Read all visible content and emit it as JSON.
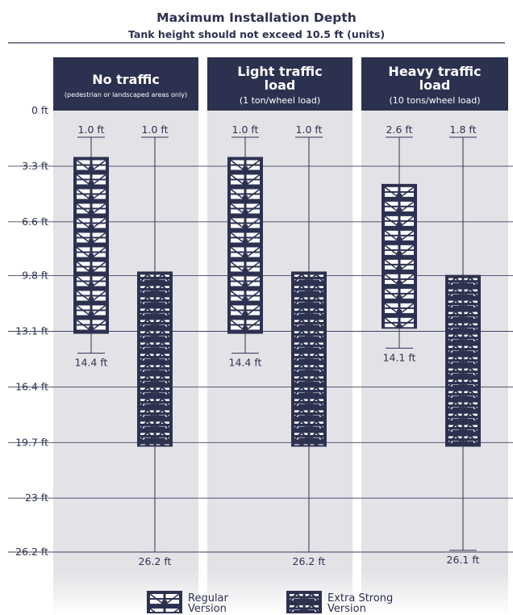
{
  "chart_data": {
    "type": "bar",
    "title": "Maximum Installation Depth",
    "subtitle": "Tank height should not exceed 10.5 ft (units)",
    "y_ticks": [
      {
        "value": 0,
        "label": "0 ft"
      },
      {
        "value": 3.3,
        "label": "3.3 ft"
      },
      {
        "value": 6.6,
        "label": "6.6 ft"
      },
      {
        "value": 9.8,
        "label": "9.8 ft"
      },
      {
        "value": 13.1,
        "label": "13.1 ft"
      },
      {
        "value": 16.4,
        "label": "16.4 ft"
      },
      {
        "value": 19.7,
        "label": "19.7 ft"
      },
      {
        "value": 23,
        "label": "23 ft"
      },
      {
        "value": 26.2,
        "label": "26.2 ft"
      }
    ],
    "ylim": [
      0,
      26.2
    ],
    "y_inverted": true,
    "grid": true,
    "categories": [
      {
        "title": "No traffic",
        "subtitle": "(pedestrian or landscaped areas only)"
      },
      {
        "title": "Light traffic load",
        "subtitle": "(1 ton/wheel load)"
      },
      {
        "title": "Heavy traffic load",
        "subtitle": "(10 tons/wheel load)"
      }
    ],
    "series": [
      {
        "name": "Regular Version",
        "pattern": "regular",
        "min_depth_labels": [
          "1.0 ft",
          "1.0 ft",
          "2.6 ft"
        ],
        "max_depth_labels": [
          "14.4 ft",
          "14.4 ft",
          "14.1 ft"
        ],
        "min_depth": [
          1.0,
          1.0,
          2.6
        ],
        "max_depth": [
          14.4,
          14.4,
          14.1
        ]
      },
      {
        "name": "Extra Strong Version",
        "pattern": "strong",
        "min_depth_labels": [
          "1.0 ft",
          "1.0 ft",
          "1.8 ft"
        ],
        "max_depth_labels": [
          "26.2 ft",
          "26.2 ft",
          "26.1 ft"
        ],
        "min_depth": [
          1.0,
          1.0,
          1.8
        ],
        "max_depth": [
          26.2,
          26.2,
          26.1
        ]
      }
    ],
    "legend": [
      {
        "line1": "Regular",
        "line2": "Version",
        "pattern": "regular"
      },
      {
        "line1": "Extra Strong",
        "line2": "Version",
        "pattern": "strong"
      }
    ],
    "legend_position": "bottom",
    "colors": {
      "header": "#2d3150",
      "panel": "#e3e3e7",
      "grid": "#3e4262",
      "ink": "#2d3150",
      "header_text": "#ffffff"
    }
  }
}
